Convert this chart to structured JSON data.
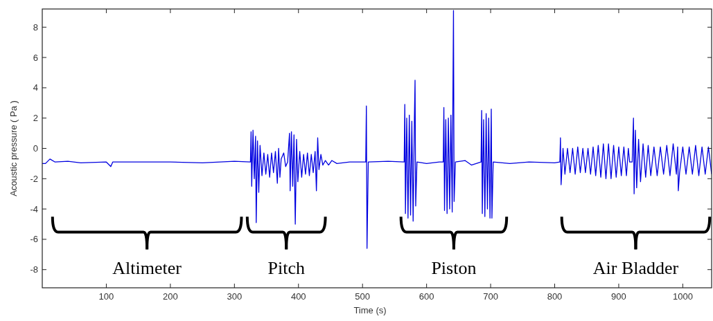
{
  "chart_data": {
    "type": "line",
    "xlabel": "Time (s)",
    "ylabel": "Acoustic pressure  ( Pa )",
    "xlim": [
      0,
      1045
    ],
    "ylim": [
      -9.2,
      9.2
    ],
    "xticks": [
      100,
      200,
      300,
      400,
      500,
      600,
      700,
      800,
      900,
      1000
    ],
    "yticks": [
      -8,
      -6,
      -4,
      -2,
      0,
      2,
      4,
      6,
      8
    ],
    "grid": false,
    "marker": "none",
    "line_style": "solid",
    "annotations": [
      "Altimeter",
      "Pitch",
      "Piston",
      "Air Bladder"
    ],
    "series": [
      {
        "color": "#0000e0",
        "x": [
          0,
          5,
          12,
          20,
          40,
          60,
          100,
          107,
          110,
          200,
          250,
          300,
          325,
          326,
          327,
          329,
          331,
          333,
          334,
          336,
          338,
          340,
          343,
          346,
          349,
          352,
          355,
          358,
          361,
          364,
          367,
          369,
          371,
          373,
          377,
          380,
          383,
          386,
          387,
          389,
          391,
          393,
          395,
          397,
          399,
          402,
          405,
          408,
          411,
          414,
          417,
          420,
          423,
          426,
          428,
          430,
          432,
          435,
          438,
          442,
          447,
          452,
          460,
          480,
          505,
          506,
          507,
          509,
          540,
          565,
          566,
          567,
          569,
          571,
          573,
          575,
          577,
          579,
          581,
          582,
          583,
          585,
          600,
          620,
          626,
          627,
          628,
          630,
          632,
          634,
          636,
          638,
          640,
          641,
          642,
          643,
          645,
          660,
          670,
          685,
          686,
          687,
          689,
          691,
          693,
          695,
          697,
          699,
          701,
          702,
          704,
          730,
          760,
          800,
          808,
          809,
          810,
          813,
          816,
          820,
          824,
          828,
          832,
          836,
          840,
          844,
          848,
          852,
          856,
          860,
          864,
          868,
          872,
          876,
          880,
          884,
          888,
          892,
          896,
          900,
          904,
          908,
          912,
          915,
          917,
          921,
          923,
          924,
          926,
          928,
          931,
          934,
          938,
          942,
          946,
          950,
          955,
          960,
          965,
          970,
          975,
          980,
          985,
          990,
          992,
          993,
          995,
          1000,
          1005,
          1010,
          1015,
          1020,
          1025,
          1030,
          1035,
          1040,
          1045
        ],
        "values": [
          -1.0,
          -1.0,
          -0.7,
          -0.9,
          -0.85,
          -0.95,
          -0.9,
          -1.2,
          -0.9,
          -0.9,
          -0.95,
          -0.85,
          -0.9,
          1.1,
          -2.5,
          1.2,
          -2.0,
          0.8,
          -4.9,
          0.5,
          -2.9,
          0.2,
          -1.8,
          -0.3,
          -1.7,
          -0.4,
          -1.9,
          -0.3,
          -1.6,
          -0.2,
          -2.3,
          0.0,
          -1.9,
          -0.7,
          -0.3,
          -1.2,
          -0.9,
          1.0,
          -2.8,
          1.1,
          -2.5,
          0.9,
          -5.0,
          0.6,
          -2.2,
          -0.2,
          -1.9,
          -0.4,
          -1.7,
          -0.3,
          -1.8,
          -0.4,
          -1.6,
          -0.2,
          -2.8,
          0.7,
          -1.4,
          -0.4,
          -1.1,
          -0.8,
          -1.1,
          -0.8,
          -1.0,
          -0.9,
          -0.9,
          2.8,
          -6.6,
          -0.9,
          -0.85,
          -0.9,
          2.9,
          -4.3,
          2.0,
          -4.6,
          2.2,
          -4.4,
          1.8,
          -4.8,
          2.0,
          4.5,
          -3.8,
          -0.9,
          -1.0,
          -0.9,
          -0.9,
          2.7,
          -4.1,
          1.9,
          -4.3,
          2.0,
          -4.0,
          2.2,
          -4.2,
          2.9,
          9.1,
          -3.5,
          -0.9,
          -0.8,
          -1.1,
          -0.9,
          2.5,
          -4.3,
          1.9,
          -4.5,
          2.3,
          -4.0,
          2.0,
          -4.6,
          2.6,
          -4.6,
          -0.9,
          -1.0,
          -0.9,
          -0.95,
          -0.9,
          0.7,
          -2.4,
          0.0,
          -1.7,
          0.0,
          -1.6,
          0.0,
          -1.7,
          0.1,
          -1.6,
          0.0,
          -1.6,
          0.0,
          -1.7,
          0.1,
          -1.8,
          0.2,
          -1.9,
          0.3,
          -2.0,
          0.3,
          -2.0,
          0.2,
          -1.9,
          0.1,
          -1.8,
          0.1,
          -1.8,
          0.0,
          -0.9,
          -0.9,
          2.0,
          -3.0,
          1.2,
          -2.6,
          0.6,
          -2.2,
          0.3,
          -1.9,
          0.2,
          -1.8,
          0.1,
          -1.8,
          0.1,
          -1.7,
          0.2,
          -1.8,
          0.3,
          -1.7,
          0.1,
          -2.8,
          -1.6,
          0.1,
          -1.7,
          0.1,
          -1.7,
          0.2,
          -1.8,
          0.1,
          -1.7,
          0.1,
          -1.7
        ]
      }
    ]
  }
}
